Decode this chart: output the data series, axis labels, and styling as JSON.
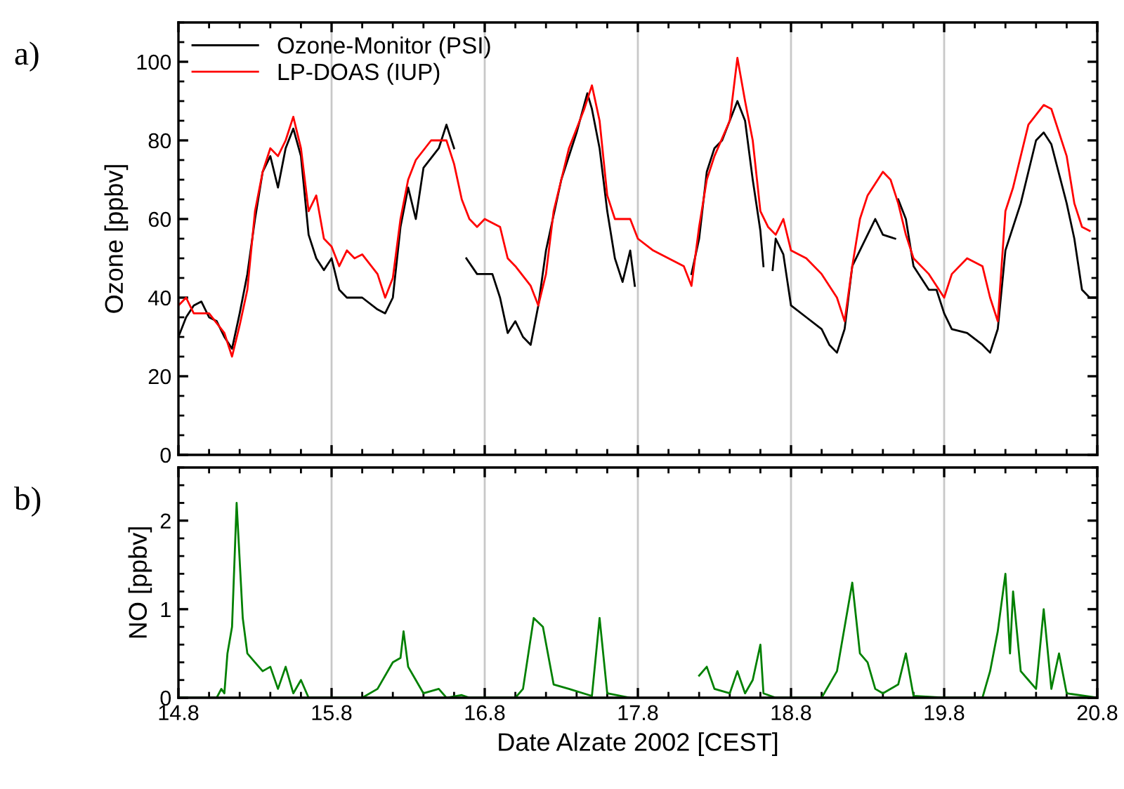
{
  "chart_data": [
    {
      "type": "line",
      "ylabel": "Ozone [ppbv]",
      "annotations": [
        "a)"
      ],
      "legend": "top left",
      "grid": "x",
      "tick_labels": "y",
      "xlim": [
        14.8,
        20.8
      ],
      "xticks": [
        {
          "value": 14.8,
          "label": null
        },
        {
          "value": 15.8,
          "label": null
        },
        {
          "value": 16.8,
          "label": null
        },
        {
          "value": 17.8,
          "label": null
        },
        {
          "value": 18.8,
          "label": null
        },
        {
          "value": 19.8,
          "label": null
        },
        {
          "value": 20.8,
          "label": null
        }
      ],
      "ylim": [
        0,
        110
      ],
      "yticks": [
        0,
        20,
        40,
        60,
        80,
        100
      ],
      "series": [
        {
          "name": "Ozone-Monitor (PSI)",
          "color": "#000000",
          "x": [
            14.8,
            14.85,
            14.9,
            14.95,
            15.0,
            15.05,
            15.1,
            15.15,
            15.2,
            15.25,
            15.3,
            15.35,
            15.4,
            15.45,
            15.5,
            15.55,
            15.6,
            15.65,
            15.7,
            15.75,
            15.8,
            15.85,
            15.9,
            16.0,
            16.1,
            16.15,
            16.2,
            16.25,
            16.3,
            16.35,
            16.4,
            16.5,
            16.55,
            16.6,
            16.64,
            16.68,
            16.75,
            16.8,
            16.85,
            16.9,
            16.95,
            17.0,
            17.05,
            17.1,
            17.15,
            17.2,
            17.3,
            17.4,
            17.47,
            17.5,
            17.55,
            17.6,
            17.65,
            17.7,
            17.75,
            17.78,
            17.9,
            18.15,
            18.2,
            18.25,
            18.3,
            18.35,
            18.45,
            18.5,
            18.55,
            18.6,
            18.62,
            18.65,
            18.68,
            18.7,
            18.75,
            18.8,
            18.9,
            19.0,
            19.05,
            19.1,
            19.15,
            19.2,
            19.3,
            19.35,
            19.4,
            19.48,
            19.49,
            19.5,
            19.55,
            19.6,
            19.7,
            19.75,
            19.8,
            19.85,
            19.95,
            20.05,
            20.1,
            20.15,
            20.2,
            20.3,
            20.4,
            20.45,
            20.5,
            20.6,
            20.65,
            20.7,
            20.75,
            20.8
          ],
          "values": [
            30,
            35,
            38,
            39,
            35,
            34,
            30,
            27,
            36,
            46,
            60,
            72,
            76,
            68,
            78,
            83,
            76,
            56,
            50,
            47,
            50,
            42,
            40,
            40,
            37,
            36,
            40,
            58,
            68,
            60,
            73,
            78,
            84,
            78,
            null,
            50,
            46,
            46,
            46,
            40,
            31,
            34,
            30,
            28,
            38,
            52,
            70,
            82,
            92,
            88,
            78,
            62,
            50,
            44,
            52,
            43,
            null,
            46,
            55,
            72,
            78,
            80,
            90,
            85,
            70,
            57,
            48,
            null,
            47,
            55,
            51,
            38,
            35,
            32,
            28,
            26,
            32,
            48,
            56,
            60,
            56,
            55,
            null,
            65,
            60,
            48,
            42,
            42,
            36,
            32,
            31,
            28,
            26,
            32,
            52,
            64,
            80,
            82,
            79,
            64,
            55,
            42,
            40,
            40
          ]
        },
        {
          "name": "LP-DOAS (IUP)",
          "color": "#ff0000",
          "x": [
            14.8,
            14.85,
            14.9,
            15.0,
            15.1,
            15.15,
            15.2,
            15.25,
            15.3,
            15.35,
            15.4,
            15.45,
            15.5,
            15.55,
            15.6,
            15.65,
            15.7,
            15.75,
            15.8,
            15.85,
            15.9,
            15.95,
            16.0,
            16.1,
            16.15,
            16.2,
            16.25,
            16.3,
            16.35,
            16.45,
            16.55,
            16.6,
            16.65,
            16.7,
            16.75,
            16.8,
            16.9,
            16.95,
            17.0,
            17.1,
            17.15,
            17.2,
            17.25,
            17.3,
            17.35,
            17.45,
            17.5,
            17.55,
            17.6,
            17.65,
            17.75,
            17.8,
            17.9,
            18.0,
            18.1,
            18.15,
            18.2,
            18.25,
            18.3,
            18.4,
            18.45,
            18.5,
            18.55,
            18.6,
            18.65,
            18.7,
            18.75,
            18.8,
            18.9,
            19.0,
            19.1,
            19.15,
            19.2,
            19.25,
            19.3,
            19.4,
            19.45,
            19.5,
            19.55,
            19.6,
            19.7,
            19.8,
            19.85,
            19.95,
            20.05,
            20.1,
            20.15,
            20.2,
            20.25,
            20.35,
            20.45,
            20.5,
            20.6,
            20.65,
            20.7,
            20.75
          ],
          "values": [
            38,
            40,
            36,
            36,
            31,
            25,
            33,
            42,
            62,
            72,
            78,
            76,
            80,
            86,
            78,
            62,
            66,
            55,
            53,
            48,
            52,
            50,
            51,
            46,
            40,
            45,
            60,
            70,
            75,
            80,
            80,
            74,
            65,
            60,
            58,
            60,
            58,
            50,
            48,
            43,
            38,
            46,
            62,
            70,
            78,
            88,
            94,
            85,
            66,
            60,
            60,
            55,
            52,
            50,
            48,
            43,
            58,
            70,
            76,
            85,
            101,
            90,
            80,
            62,
            58,
            56,
            60,
            52,
            50,
            46,
            40,
            34,
            48,
            60,
            66,
            72,
            70,
            64,
            56,
            50,
            46,
            40,
            46,
            50,
            48,
            40,
            34,
            62,
            68,
            84,
            89,
            88,
            76,
            64,
            58,
            57
          ]
        }
      ]
    },
    {
      "type": "line",
      "xlabel": "Date Alzate 2002 [CEST]",
      "ylabel": "NO [ppbv]",
      "annotations": [
        "b)"
      ],
      "grid": "x",
      "legend": false,
      "xlim": [
        14.8,
        20.8
      ],
      "xticks": [
        14.8,
        15.8,
        16.8,
        17.8,
        18.8,
        19.8,
        20.8
      ],
      "ylim": [
        0,
        2.6
      ],
      "yticks": [
        0,
        1,
        2
      ],
      "series": [
        {
          "color": "#008000",
          "x": [
            14.8,
            15.05,
            15.08,
            15.1,
            15.12,
            15.15,
            15.18,
            15.22,
            15.25,
            15.3,
            15.35,
            15.4,
            15.45,
            15.5,
            15.55,
            15.6,
            15.65,
            15.8,
            16.0,
            16.1,
            16.2,
            16.25,
            16.27,
            16.3,
            16.35,
            16.4,
            16.5,
            16.55,
            16.65,
            16.7,
            17.0,
            17.05,
            17.12,
            17.18,
            17.25,
            17.35,
            17.5,
            17.55,
            17.6,
            17.75,
            17.9,
            18.2,
            18.25,
            18.3,
            18.4,
            18.45,
            18.5,
            18.55,
            18.6,
            18.62,
            18.7,
            19.0,
            19.1,
            19.2,
            19.25,
            19.3,
            19.35,
            19.4,
            19.5,
            19.55,
            19.6,
            19.8,
            20.05,
            20.1,
            20.15,
            20.2,
            20.23,
            20.25,
            20.3,
            20.35,
            20.4,
            20.45,
            20.5,
            20.55,
            20.6,
            20.8
          ],
          "values": [
            0,
            0,
            0.1,
            0.05,
            0.5,
            0.8,
            2.2,
            0.9,
            0.5,
            0.4,
            0.3,
            0.35,
            0.1,
            0.35,
            0.05,
            0.2,
            0,
            0,
            0,
            0.1,
            0.4,
            0.45,
            0.75,
            0.35,
            0.2,
            0.05,
            0.1,
            0,
            0.03,
            0,
            0,
            0.1,
            0.9,
            0.8,
            0.15,
            0.1,
            0.02,
            0.9,
            0.05,
            0,
            null,
            0.25,
            0.35,
            0.1,
            0.05,
            0.3,
            0.05,
            0.2,
            0.6,
            0.05,
            0,
            0,
            0.3,
            1.3,
            0.5,
            0.4,
            0.1,
            0.05,
            0.15,
            0.5,
            0.02,
            0,
            0,
            0.3,
            0.75,
            1.4,
            0.5,
            1.2,
            0.3,
            0.2,
            0.1,
            1.0,
            0.1,
            0.5,
            0.05,
            0
          ]
        }
      ]
    }
  ]
}
